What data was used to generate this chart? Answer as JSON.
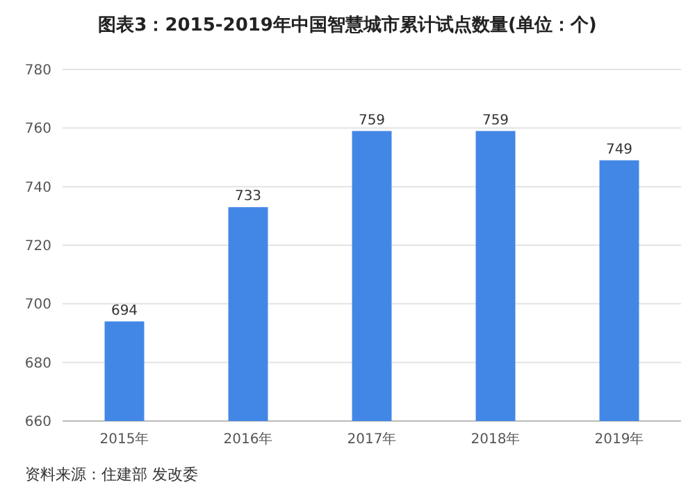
{
  "chart_data": {
    "type": "bar",
    "title": "图表3：2015-2019年中国智慧城市累计试点数量(单位：个)",
    "categories": [
      "2015年",
      "2016年",
      "2017年",
      "2018年",
      "2019年"
    ],
    "values": [
      694,
      733,
      759,
      759,
      749
    ],
    "color": "#4287e6",
    "ylim": [
      660,
      780
    ],
    "yticks": [
      660,
      680,
      700,
      720,
      740,
      760,
      780
    ],
    "grid": "y",
    "data_labels": true,
    "annotations": [
      "资料来源：住建部 发改委"
    ]
  }
}
